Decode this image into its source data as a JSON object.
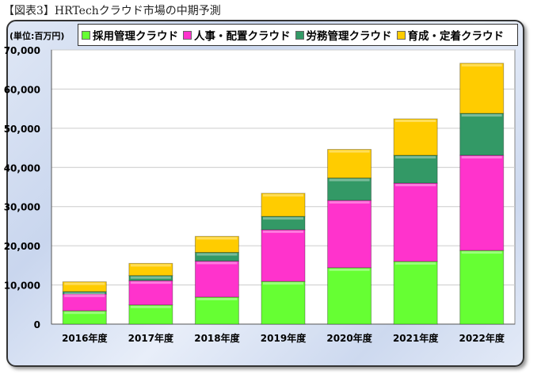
{
  "title": "【図表3】HRTechクラウド市場の中期予測",
  "chart_data": {
    "type": "bar",
    "stacked": true,
    "title": "",
    "ylabel": "(単位:百万円)",
    "xlabel": "",
    "ylim": [
      0,
      70000
    ],
    "yticks": [
      "0",
      "10,000",
      "20,000",
      "30,000",
      "40,000",
      "50,000",
      "60,000",
      "70,000"
    ],
    "grid": true,
    "legend_position": "top",
    "categories": [
      "2016年度",
      "2017年度",
      "2018年度",
      "2019年度",
      "2020年度",
      "2021年度",
      "2022年度"
    ],
    "series": [
      {
        "name": "採用管理クラウド",
        "color": "#66ff33",
        "values": [
          3400,
          4900,
          6900,
          10900,
          14400,
          16000,
          18800
        ]
      },
      {
        "name": "人事・配置クラウド",
        "color": "#ff33cc",
        "values": [
          4300,
          6200,
          9200,
          13200,
          17200,
          20000,
          24300
        ]
      },
      {
        "name": "労務管理クラウド",
        "color": "#339966",
        "values": [
          600,
          1300,
          2200,
          3400,
          5700,
          7100,
          10700
        ]
      },
      {
        "name": "育成・定着クラウド",
        "color": "#ffcc00",
        "values": [
          2500,
          3100,
          4100,
          5900,
          7300,
          9300,
          12800
        ]
      }
    ]
  }
}
